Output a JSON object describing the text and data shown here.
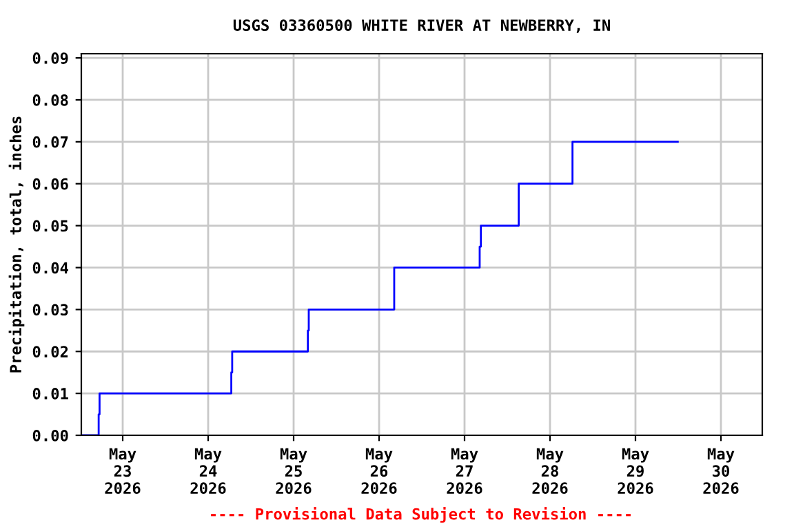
{
  "chart_data": {
    "type": "step",
    "title": "USGS 03360500 WHITE RIVER AT NEWBERRY, IN",
    "ylabel": "Precipitation, total, inches",
    "x": [
      "2026-05-22T12:30",
      "2026-05-22T17:15",
      "2026-05-22T17:30",
      "2026-05-24T06:30",
      "2026-05-24T06:45",
      "2026-05-25T04:00",
      "2026-05-25T04:15",
      "2026-05-26T04:15",
      "2026-05-27T04:15",
      "2026-05-27T04:35",
      "2026-05-27T15:13",
      "2026-05-28T06:19",
      "2026-05-29T11:53"
    ],
    "series": [
      {
        "color": "#0000ff",
        "values": [
          0,
          0.005,
          0.01,
          0.015,
          0.02,
          0.025,
          0.03,
          0.04,
          0.045,
          0.05,
          0.06,
          0.07,
          0.07
        ]
      }
    ],
    "xlim": [
      "2026-05-22T12:23",
      "2026-05-30T11:37"
    ],
    "xticks": [
      {
        "value": "2026-05-23",
        "label": "May\n23\n2026"
      },
      {
        "value": "2026-05-24",
        "label": "May\n24\n2026"
      },
      {
        "value": "2026-05-25",
        "label": "May\n25\n2026"
      },
      {
        "value": "2026-05-26",
        "label": "May\n26\n2026"
      },
      {
        "value": "2026-05-27",
        "label": "May\n27\n2026"
      },
      {
        "value": "2026-05-28",
        "label": "May\n28\n2026"
      },
      {
        "value": "2026-05-29",
        "label": "May\n29\n2026"
      },
      {
        "value": "2026-05-30",
        "label": "May\n30\n2026"
      }
    ],
    "ylim": [
      0,
      0.091
    ],
    "yticks": [
      {
        "value": 0,
        "label": "0.00"
      },
      {
        "value": 0.01,
        "label": "0.01"
      },
      {
        "value": 0.02,
        "label": "0.02"
      },
      {
        "value": 0.03,
        "label": "0.03"
      },
      {
        "value": 0.04,
        "label": "0.04"
      },
      {
        "value": 0.05,
        "label": "0.05"
      },
      {
        "value": 0.06,
        "label": "0.06"
      },
      {
        "value": 0.07,
        "label": "0.07"
      },
      {
        "value": 0.08,
        "label": "0.08"
      },
      {
        "value": 0.09,
        "label": "0.09"
      }
    ],
    "grid": true,
    "annotations": [
      "---- Provisional Data Subject to Revision ----"
    ]
  }
}
